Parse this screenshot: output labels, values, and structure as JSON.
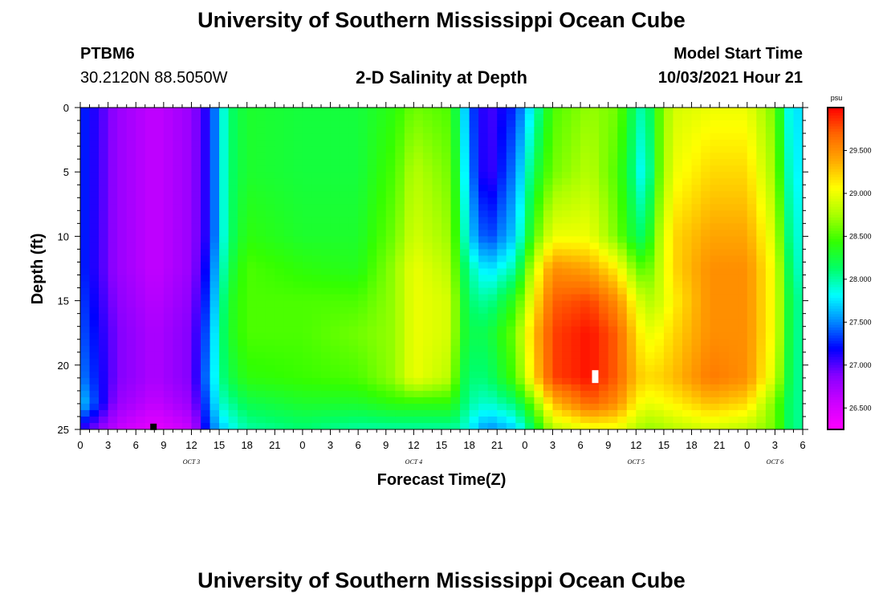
{
  "header": {
    "title": "University of Southern Mississippi Ocean Cube",
    "footer_title": "University of Southern Mississippi Ocean Cube",
    "station": "PTBM6",
    "coordinates": "30.2120N  88.5050W",
    "subtitle": "2-D Salinity at Depth",
    "model_start_label": "Model Start Time",
    "model_start_value": "10/03/2021 Hour 21"
  },
  "chart_data": {
    "type": "heatmap",
    "title": "2-D Salinity at Depth",
    "xlabel": "Forecast Time(Z)",
    "ylabel": "Depth (ft)",
    "x_tick_labels": [
      "0",
      "3",
      "6",
      "9",
      "12",
      "15",
      "18",
      "21",
      "0",
      "3",
      "6",
      "9",
      "12",
      "15",
      "18",
      "21",
      "0",
      "3",
      "6",
      "9",
      "12",
      "15",
      "18",
      "21",
      "0",
      "3",
      "6"
    ],
    "x_range_hours": [
      0,
      78
    ],
    "date_labels": [
      {
        "text": "OCT 3",
        "hour": 12
      },
      {
        "text": "OCT 4",
        "hour": 36
      },
      {
        "text": "OCT 5",
        "hour": 60
      },
      {
        "text": "OCT 6",
        "hour": 75
      }
    ],
    "y_ticks": [
      0,
      5,
      10,
      15,
      20,
      25
    ],
    "ylim": [
      0,
      25
    ],
    "y_inverted": true,
    "colorbar": {
      "unit": "psu",
      "min": 26.25,
      "max": 30.0,
      "tick_labels": [
        "26.500",
        "27.000",
        "27.500",
        "28.000",
        "28.500",
        "29.000",
        "29.500"
      ],
      "colors": [
        "#ff00ff",
        "#cc00ff",
        "#8800ff",
        "#0000ff",
        "#0088ff",
        "#00ffff",
        "#00ff66",
        "#33ff00",
        "#aaff00",
        "#ffff00",
        "#ffaa00",
        "#ff6600",
        "#ff0000"
      ]
    },
    "columns": [
      {
        "hour": 0,
        "values": [
          27.3,
          27.3,
          27.3,
          27.3,
          27.35,
          27.4,
          27.5,
          27.7,
          27.1
        ]
      },
      {
        "hour": 4,
        "values": [
          26.8,
          26.8,
          26.8,
          26.8,
          26.85,
          26.9,
          26.9,
          26.8,
          26.6
        ]
      },
      {
        "hour": 8,
        "values": [
          26.6,
          26.6,
          26.6,
          26.6,
          26.65,
          26.7,
          26.7,
          26.6,
          26.4
        ]
      },
      {
        "hour": 12,
        "values": [
          26.8,
          26.8,
          26.8,
          26.8,
          26.85,
          26.9,
          26.9,
          26.8,
          26.6
        ]
      },
      {
        "hour": 14,
        "values": [
          27.2,
          27.2,
          27.2,
          27.3,
          27.4,
          27.5,
          27.6,
          27.5,
          27.4
        ]
      },
      {
        "hour": 15,
        "values": [
          27.7,
          27.7,
          27.7,
          27.8,
          27.9,
          28.0,
          28.0,
          27.9,
          27.6
        ]
      },
      {
        "hour": 16,
        "values": [
          28.1,
          28.1,
          28.1,
          28.2,
          28.3,
          28.3,
          28.2,
          28.0,
          27.8
        ]
      },
      {
        "hour": 18,
        "values": [
          28.3,
          28.3,
          28.4,
          28.5,
          28.5,
          28.5,
          28.4,
          28.2,
          28.0
        ]
      },
      {
        "hour": 24,
        "values": [
          28.25,
          28.25,
          28.3,
          28.4,
          28.5,
          28.5,
          28.45,
          28.3,
          28.1
        ]
      },
      {
        "hour": 30,
        "values": [
          28.25,
          28.25,
          28.3,
          28.35,
          28.5,
          28.6,
          28.5,
          28.3,
          28.0
        ]
      },
      {
        "hour": 34,
        "values": [
          28.4,
          28.5,
          28.6,
          28.7,
          28.7,
          28.7,
          28.7,
          28.4,
          28.0
        ]
      },
      {
        "hour": 36,
        "values": [
          28.6,
          28.8,
          28.9,
          29.0,
          29.0,
          29.0,
          29.0,
          28.4,
          28.0
        ]
      },
      {
        "hour": 40,
        "values": [
          28.5,
          28.6,
          28.7,
          28.8,
          28.9,
          28.9,
          28.8,
          28.4,
          28.0
        ]
      },
      {
        "hour": 41,
        "values": [
          28.0,
          28.1,
          28.2,
          28.3,
          28.4,
          28.4,
          28.3,
          28.2,
          28.0
        ]
      },
      {
        "hour": 42,
        "values": [
          27.4,
          27.5,
          27.7,
          28.0,
          28.1,
          28.2,
          28.1,
          28.0,
          27.8
        ]
      },
      {
        "hour": 44,
        "values": [
          27.0,
          27.0,
          27.3,
          27.7,
          28.0,
          28.2,
          28.1,
          27.9,
          27.5
        ]
      },
      {
        "hour": 47,
        "values": [
          27.3,
          27.5,
          27.7,
          28.0,
          28.4,
          28.6,
          28.5,
          28.1,
          27.7
        ]
      },
      {
        "hour": 49,
        "values": [
          27.9,
          28.2,
          28.5,
          28.9,
          29.1,
          29.3,
          29.2,
          28.6,
          28.2
        ]
      },
      {
        "hour": 51,
        "values": [
          28.5,
          28.6,
          29.0,
          29.5,
          29.7,
          29.8,
          29.8,
          29.3,
          28.8
        ]
      },
      {
        "hour": 55,
        "values": [
          28.7,
          28.8,
          29.0,
          29.4,
          29.8,
          29.95,
          29.95,
          29.7,
          29.0
        ]
      },
      {
        "hour": 58,
        "values": [
          28.6,
          28.5,
          28.6,
          29.1,
          29.5,
          29.7,
          29.7,
          29.5,
          29.0
        ]
      },
      {
        "hour": 60,
        "values": [
          28.1,
          28.0,
          28.2,
          28.6,
          29.0,
          29.2,
          29.3,
          29.1,
          28.8
        ]
      },
      {
        "hour": 61,
        "values": [
          27.9,
          27.7,
          28.1,
          28.5,
          28.8,
          29.0,
          29.2,
          29.0,
          28.7
        ]
      },
      {
        "hour": 62,
        "values": [
          28.4,
          28.4,
          28.6,
          28.7,
          28.8,
          29.0,
          29.2,
          29.0,
          28.7
        ]
      },
      {
        "hour": 64,
        "values": [
          28.9,
          29.0,
          29.2,
          29.2,
          29.1,
          29.2,
          29.3,
          29.1,
          28.8
        ]
      },
      {
        "hour": 68,
        "values": [
          29.0,
          29.2,
          29.4,
          29.5,
          29.5,
          29.5,
          29.6,
          29.3,
          28.9
        ]
      },
      {
        "hour": 72,
        "values": [
          29.0,
          29.2,
          29.4,
          29.5,
          29.5,
          29.5,
          29.5,
          29.2,
          28.8
        ]
      },
      {
        "hour": 75,
        "values": [
          28.6,
          28.7,
          28.9,
          29.0,
          29.0,
          29.0,
          28.9,
          28.6,
          28.6
        ]
      },
      {
        "hour": 77,
        "values": [
          27.6,
          27.7,
          27.8,
          27.9,
          28.0,
          28.0,
          28.0,
          28.0,
          28.0
        ]
      },
      {
        "hour": 78,
        "values": [
          27.9,
          27.9,
          28.0,
          28.0,
          28.1,
          28.1,
          28.1,
          28.1,
          28.1
        ]
      }
    ],
    "column_depths": [
      0,
      5,
      10,
      12.5,
      15,
      17.5,
      21,
      23,
      25
    ],
    "markers": [
      {
        "name": "min-marker",
        "hour": 7.9,
        "depth": 24.8,
        "color": "#000000"
      },
      {
        "name": "max-marker",
        "hour": 55.6,
        "depth": 20.9,
        "color": "#ffffff"
      }
    ]
  }
}
